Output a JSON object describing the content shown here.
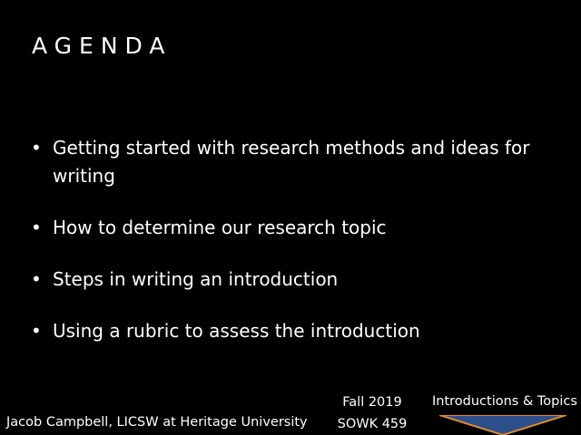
{
  "slide": {
    "title": "AGENDA",
    "bullets": [
      {
        "text": "Getting started with research methods and ideas for writing"
      },
      {
        "text": "How to determine our research topic"
      },
      {
        "text": "Steps in writing an introduction"
      },
      {
        "text": "Using a rubric to assess the introduction"
      }
    ],
    "bullet_glyph": "•"
  },
  "footer": {
    "author": "Jacob Campbell, LICSW at Heritage University",
    "term": "Fall 2019",
    "course": "SOWK 459",
    "topic": "Introductions & Topics"
  },
  "colors": {
    "background": "#000000",
    "text": "#ffffff",
    "chevron_fill": "#2e4e8c",
    "chevron_border": "#e08a2e"
  }
}
